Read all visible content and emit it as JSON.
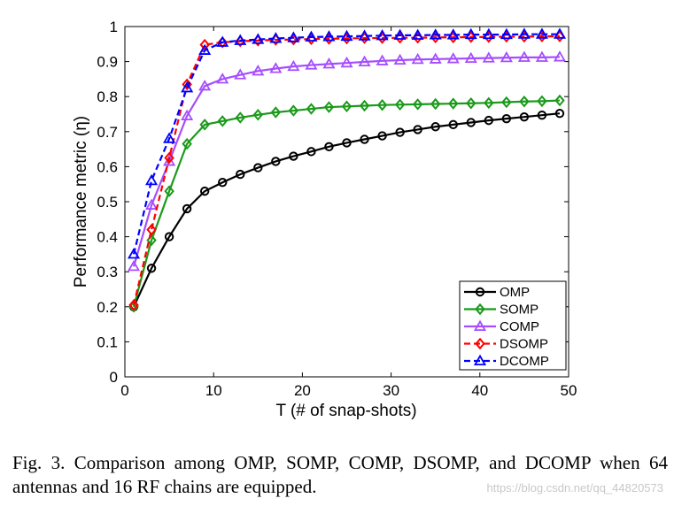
{
  "chart_data": {
    "type": "line",
    "xlabel": "T (# of snap-shots)",
    "ylabel": "Performance metric (η)",
    "xlim": [
      0,
      50
    ],
    "ylim": [
      0,
      1
    ],
    "xticks": [
      0,
      10,
      20,
      30,
      40,
      50
    ],
    "yticks": [
      0,
      0.1,
      0.2,
      0.3,
      0.4,
      0.5,
      0.6,
      0.7,
      0.8,
      0.9,
      1
    ],
    "ytick_labels": [
      "0",
      "0.1",
      "0.2",
      "0.3",
      "0.4",
      "0.5",
      "0.6",
      "0.7",
      "0.8",
      "0.9",
      "1"
    ],
    "grid": false,
    "legend_position": "bottom-right",
    "x": [
      1,
      3,
      5,
      7,
      9,
      11,
      13,
      15,
      17,
      19,
      21,
      23,
      25,
      27,
      29,
      31,
      33,
      35,
      37,
      39,
      41,
      43,
      45,
      47,
      49
    ],
    "series": [
      {
        "name": "OMP",
        "color": "#000000",
        "marker": "circle",
        "dash": "solid",
        "values": [
          0.2,
          0.31,
          0.4,
          0.48,
          0.53,
          0.555,
          0.578,
          0.597,
          0.615,
          0.63,
          0.643,
          0.657,
          0.668,
          0.678,
          0.688,
          0.698,
          0.706,
          0.714,
          0.72,
          0.726,
          0.732,
          0.737,
          0.742,
          0.747,
          0.752
        ]
      },
      {
        "name": "SOMP",
        "color": "#1a9a1a",
        "marker": "diamond",
        "dash": "solid",
        "values": [
          0.2,
          0.39,
          0.53,
          0.665,
          0.72,
          0.73,
          0.74,
          0.748,
          0.755,
          0.76,
          0.765,
          0.77,
          0.772,
          0.774,
          0.776,
          0.777,
          0.778,
          0.779,
          0.78,
          0.781,
          0.782,
          0.784,
          0.786,
          0.787,
          0.789
        ]
      },
      {
        "name": "COMP",
        "color": "#a64dff",
        "marker": "triangle",
        "dash": "solid",
        "values": [
          0.315,
          0.49,
          0.615,
          0.745,
          0.83,
          0.85,
          0.862,
          0.873,
          0.88,
          0.886,
          0.89,
          0.893,
          0.896,
          0.899,
          0.902,
          0.904,
          0.906,
          0.907,
          0.908,
          0.909,
          0.91,
          0.911,
          0.912,
          0.912,
          0.913
        ]
      },
      {
        "name": "DSOMP",
        "color": "#ff0000",
        "marker": "diamond",
        "dash": "dashed",
        "values": [
          0.205,
          0.42,
          0.625,
          0.835,
          0.948,
          0.955,
          0.958,
          0.96,
          0.962,
          0.963,
          0.964,
          0.965,
          0.966,
          0.967,
          0.967,
          0.968,
          0.968,
          0.969,
          0.969,
          0.97,
          0.97,
          0.971,
          0.971,
          0.972,
          0.972
        ]
      },
      {
        "name": "DCOMP",
        "color": "#0000ff",
        "marker": "triangle",
        "dash": "dashed",
        "values": [
          0.35,
          0.56,
          0.68,
          0.825,
          0.932,
          0.955,
          0.96,
          0.963,
          0.966,
          0.968,
          0.97,
          0.971,
          0.972,
          0.973,
          0.974,
          0.975,
          0.975,
          0.976,
          0.976,
          0.977,
          0.977,
          0.977,
          0.978,
          0.978,
          0.978
        ]
      }
    ]
  },
  "caption": {
    "text": "Fig. 3.  Comparison among OMP, SOMP, COMP, DSOMP, and DCOMP when 64 antennas and 16 RF chains are equipped."
  },
  "watermark": "https://blog.csdn.net/qq_44820573"
}
